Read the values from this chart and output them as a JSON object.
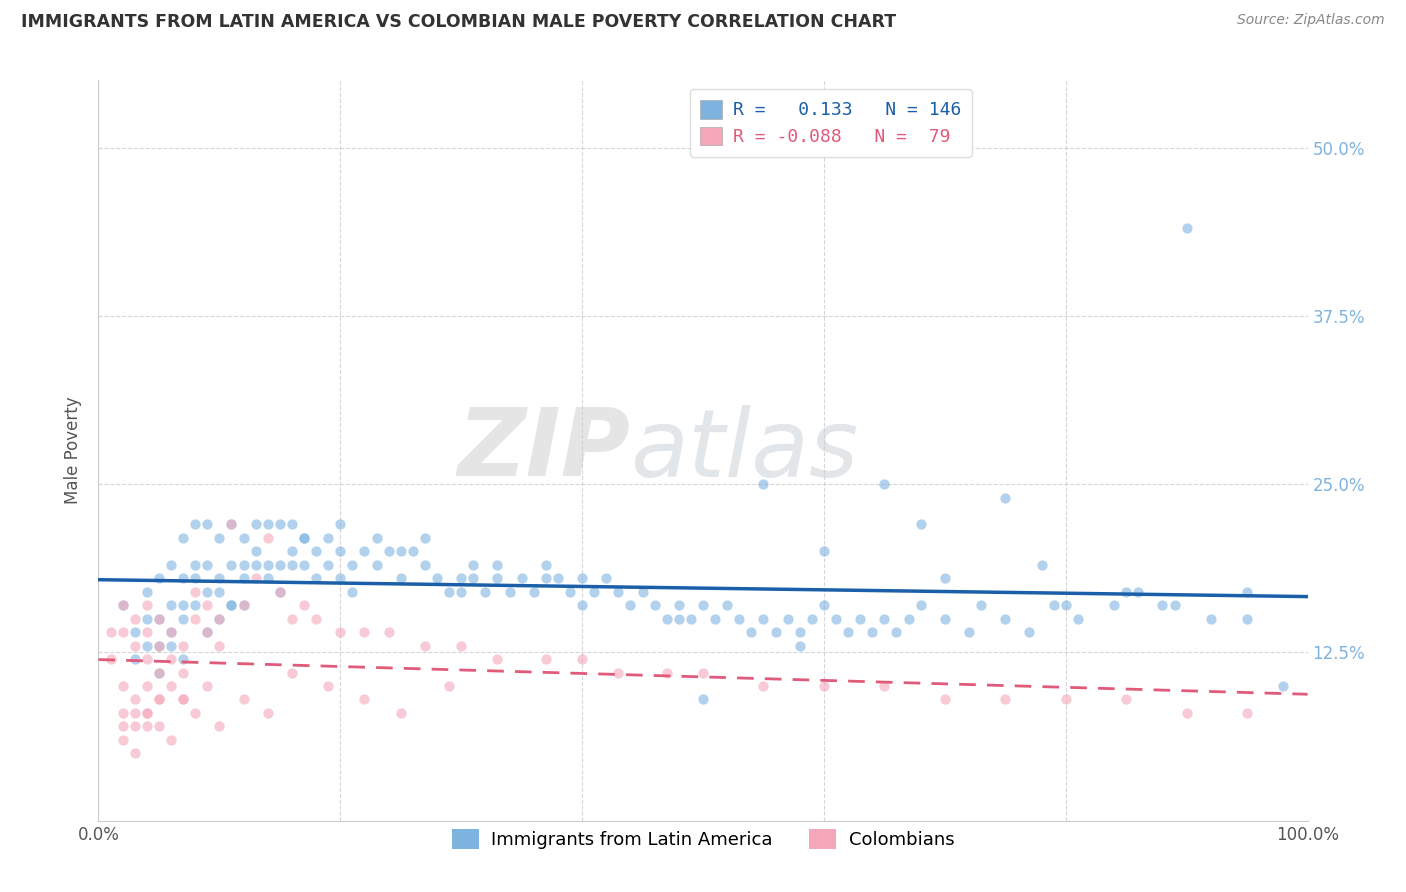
{
  "title": "IMMIGRANTS FROM LATIN AMERICA VS COLOMBIAN MALE POVERTY CORRELATION CHART",
  "source": "Source: ZipAtlas.com",
  "ylabel": "Male Poverty",
  "xlim": [
    0.0,
    1.0
  ],
  "ylim": [
    0.0,
    0.55
  ],
  "yticks": [
    0.125,
    0.25,
    0.375,
    0.5
  ],
  "ytick_labels": [
    "12.5%",
    "25.0%",
    "37.5%",
    "50.0%"
  ],
  "xticks": [
    0.0,
    0.2,
    0.4,
    0.6,
    0.8,
    1.0
  ],
  "xtick_labels": [
    "0.0%",
    "",
    "",
    "",
    "",
    "100.0%"
  ],
  "blue_R": 0.133,
  "blue_N": 146,
  "pink_R": -0.088,
  "pink_N": 79,
  "blue_color": "#7eb3e0",
  "pink_color": "#f4a7b9",
  "blue_line_color": "#1a5fa8",
  "pink_line_color": "#e05a7a",
  "legend_label_blue": "Immigrants from Latin America",
  "legend_label_pink": "Colombians",
  "watermark_zip": "ZIP",
  "watermark_atlas": "atlas",
  "background_color": "#ffffff",
  "grid_color": "#cccccc",
  "title_color": "#333333",
  "axis_label_color": "#555555",
  "right_tick_color": "#7eb3e0",
  "scatter_alpha": 0.6,
  "scatter_size": 55,
  "blue_scatter_x": [
    0.02,
    0.03,
    0.04,
    0.04,
    0.05,
    0.05,
    0.05,
    0.06,
    0.06,
    0.06,
    0.07,
    0.07,
    0.07,
    0.07,
    0.08,
    0.08,
    0.08,
    0.09,
    0.09,
    0.09,
    0.1,
    0.1,
    0.1,
    0.11,
    0.11,
    0.11,
    0.12,
    0.12,
    0.12,
    0.13,
    0.13,
    0.14,
    0.14,
    0.15,
    0.15,
    0.16,
    0.16,
    0.17,
    0.17,
    0.18,
    0.18,
    0.19,
    0.19,
    0.2,
    0.2,
    0.21,
    0.21,
    0.22,
    0.23,
    0.23,
    0.24,
    0.25,
    0.25,
    0.26,
    0.27,
    0.27,
    0.28,
    0.29,
    0.3,
    0.3,
    0.31,
    0.31,
    0.32,
    0.33,
    0.33,
    0.34,
    0.35,
    0.36,
    0.37,
    0.37,
    0.38,
    0.39,
    0.4,
    0.4,
    0.41,
    0.42,
    0.43,
    0.44,
    0.45,
    0.46,
    0.47,
    0.48,
    0.49,
    0.5,
    0.51,
    0.52,
    0.53,
    0.54,
    0.55,
    0.56,
    0.57,
    0.58,
    0.59,
    0.6,
    0.61,
    0.62,
    0.63,
    0.64,
    0.65,
    0.66,
    0.67,
    0.68,
    0.7,
    0.72,
    0.73,
    0.75,
    0.77,
    0.79,
    0.81,
    0.84,
    0.86,
    0.89,
    0.92,
    0.55,
    0.65,
    0.75,
    0.85,
    0.95,
    0.98,
    0.5,
    0.6,
    0.7,
    0.8,
    0.9,
    0.95,
    0.48,
    0.58,
    0.68,
    0.78,
    0.88,
    0.03,
    0.04,
    0.05,
    0.06,
    0.07,
    0.08,
    0.09,
    0.1,
    0.11,
    0.12,
    0.13,
    0.14,
    0.15,
    0.16,
    0.17,
    0.2
  ],
  "blue_scatter_y": [
    0.16,
    0.14,
    0.17,
    0.13,
    0.18,
    0.15,
    0.11,
    0.19,
    0.16,
    0.13,
    0.21,
    0.18,
    0.15,
    0.12,
    0.22,
    0.19,
    0.16,
    0.22,
    0.19,
    0.17,
    0.21,
    0.18,
    0.15,
    0.22,
    0.19,
    0.16,
    0.21,
    0.18,
    0.16,
    0.22,
    0.19,
    0.22,
    0.19,
    0.22,
    0.19,
    0.22,
    0.2,
    0.21,
    0.19,
    0.2,
    0.18,
    0.21,
    0.19,
    0.2,
    0.18,
    0.19,
    0.17,
    0.2,
    0.21,
    0.19,
    0.2,
    0.2,
    0.18,
    0.2,
    0.21,
    0.19,
    0.18,
    0.17,
    0.18,
    0.17,
    0.19,
    0.18,
    0.17,
    0.19,
    0.18,
    0.17,
    0.18,
    0.17,
    0.18,
    0.19,
    0.18,
    0.17,
    0.18,
    0.16,
    0.17,
    0.18,
    0.17,
    0.16,
    0.17,
    0.16,
    0.15,
    0.16,
    0.15,
    0.16,
    0.15,
    0.16,
    0.15,
    0.14,
    0.15,
    0.14,
    0.15,
    0.14,
    0.15,
    0.16,
    0.15,
    0.14,
    0.15,
    0.14,
    0.15,
    0.14,
    0.15,
    0.16,
    0.15,
    0.14,
    0.16,
    0.15,
    0.14,
    0.16,
    0.15,
    0.16,
    0.17,
    0.16,
    0.15,
    0.25,
    0.25,
    0.24,
    0.17,
    0.17,
    0.1,
    0.09,
    0.2,
    0.18,
    0.16,
    0.44,
    0.15,
    0.15,
    0.13,
    0.22,
    0.19,
    0.16,
    0.12,
    0.15,
    0.13,
    0.14,
    0.16,
    0.18,
    0.14,
    0.17,
    0.16,
    0.19,
    0.2,
    0.18,
    0.17,
    0.19,
    0.21,
    0.22
  ],
  "pink_scatter_x": [
    0.01,
    0.01,
    0.02,
    0.02,
    0.02,
    0.02,
    0.03,
    0.03,
    0.03,
    0.03,
    0.04,
    0.04,
    0.04,
    0.04,
    0.04,
    0.05,
    0.05,
    0.05,
    0.05,
    0.06,
    0.06,
    0.06,
    0.07,
    0.07,
    0.07,
    0.08,
    0.08,
    0.09,
    0.09,
    0.1,
    0.1,
    0.11,
    0.12,
    0.13,
    0.14,
    0.15,
    0.16,
    0.17,
    0.18,
    0.2,
    0.22,
    0.24,
    0.27,
    0.3,
    0.33,
    0.37,
    0.4,
    0.43,
    0.47,
    0.5,
    0.55,
    0.6,
    0.65,
    0.7,
    0.75,
    0.8,
    0.85,
    0.9,
    0.95,
    0.02,
    0.03,
    0.04,
    0.05,
    0.06,
    0.07,
    0.08,
    0.09,
    0.1,
    0.12,
    0.14,
    0.16,
    0.19,
    0.22,
    0.25,
    0.29,
    0.02,
    0.03,
    0.04,
    0.05
  ],
  "pink_scatter_y": [
    0.14,
    0.12,
    0.16,
    0.14,
    0.1,
    0.08,
    0.15,
    0.13,
    0.09,
    0.07,
    0.16,
    0.14,
    0.12,
    0.1,
    0.08,
    0.15,
    0.13,
    0.11,
    0.09,
    0.14,
    0.12,
    0.1,
    0.13,
    0.11,
    0.09,
    0.17,
    0.15,
    0.16,
    0.14,
    0.15,
    0.13,
    0.22,
    0.16,
    0.18,
    0.21,
    0.17,
    0.15,
    0.16,
    0.15,
    0.14,
    0.14,
    0.14,
    0.13,
    0.13,
    0.12,
    0.12,
    0.12,
    0.11,
    0.11,
    0.11,
    0.1,
    0.1,
    0.1,
    0.09,
    0.09,
    0.09,
    0.09,
    0.08,
    0.08,
    0.07,
    0.05,
    0.08,
    0.07,
    0.06,
    0.09,
    0.08,
    0.1,
    0.07,
    0.09,
    0.08,
    0.11,
    0.1,
    0.09,
    0.08,
    0.1,
    0.06,
    0.08,
    0.07,
    0.09
  ]
}
